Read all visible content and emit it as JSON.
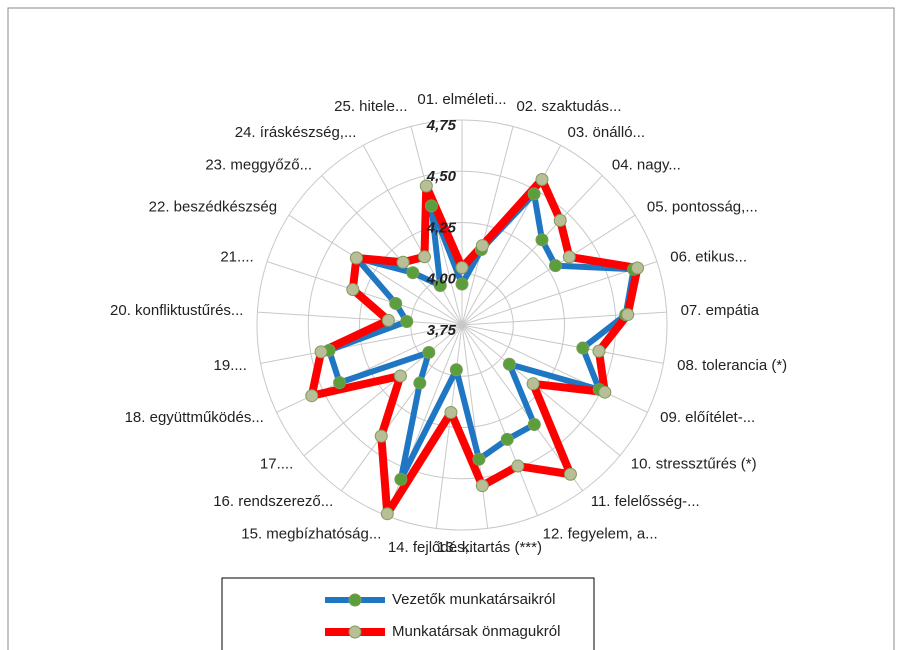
{
  "chart_data": {
    "type": "radar",
    "categories": [
      "01. elméleti...",
      "02. szaktudás...",
      "03. önálló...",
      "04. nagy...",
      "05. pontosság,...",
      "06. etikus...",
      "07. empátia",
      "08. tolerancia (*)",
      "09. előítélet-...",
      "10. stressztűrés (*)",
      "11. felelősség-...",
      "12. fegyelem, a...",
      "13. kitartás (***)",
      "14. fejlődés,...",
      "15. megbízhatóság...",
      "16. rendszerező...",
      "17....",
      "18. együttműködés...",
      "19....",
      "20. konfliktustűrés...",
      "21....",
      "22. beszédkészség",
      "23. meggyőző...",
      "24. íráskészség,...",
      "25. hitele..."
    ],
    "series": [
      {
        "name": "Vezetők munkatársaikról",
        "color": "#1f77c4",
        "marker_color": "#5b9e3c",
        "values": [
          3.95,
          4.13,
          4.48,
          4.32,
          4.29,
          4.63,
          4.55,
          4.35,
          4.49,
          4.05,
          4.35,
          4.35,
          4.41,
          3.97,
          4.56,
          4.1,
          3.96,
          4.41,
          4.41,
          4.02,
          4.09,
          4.36,
          4.1,
          3.97,
          4.35
        ]
      },
      {
        "name": "Munkatársak önmagukról",
        "color": "#ff0000",
        "marker_color": "#b8bf98",
        "values": [
          4.03,
          4.15,
          4.56,
          4.45,
          4.37,
          4.65,
          4.56,
          4.43,
          4.52,
          4.2,
          4.65,
          4.49,
          4.54,
          4.18,
          4.74,
          4.42,
          4.14,
          4.56,
          4.45,
          4.11,
          4.31,
          4.36,
          4.17,
          4.13,
          4.45
        ]
      }
    ],
    "ylim": [
      3.75,
      4.75
    ],
    "yticks": [
      {
        "value": 3.75,
        "label": "3,75"
      },
      {
        "value": 4.0,
        "label": "4,00"
      },
      {
        "value": 4.25,
        "label": "4,25"
      },
      {
        "value": 4.5,
        "label": "4,50"
      },
      {
        "value": 4.75,
        "label": "4,75"
      }
    ],
    "grid": true
  }
}
